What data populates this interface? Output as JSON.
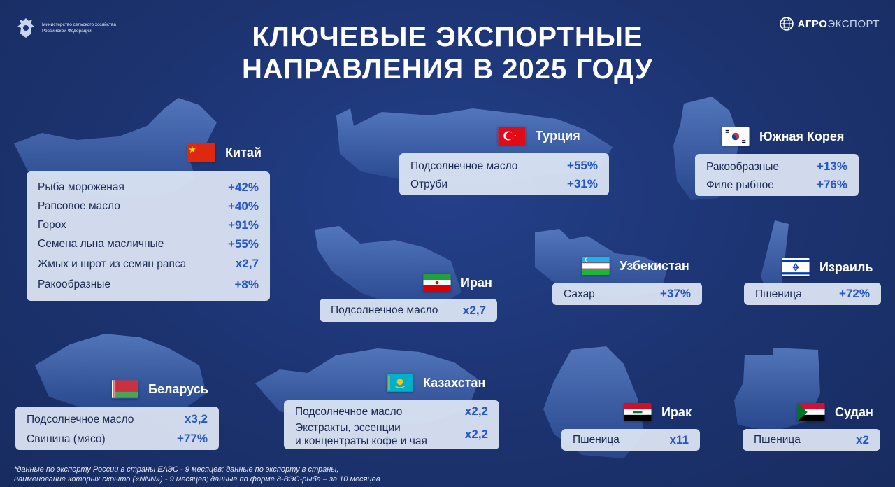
{
  "header": {
    "ministry": "Министерство сельского хозяйства Российской Федерации",
    "ministry_line1": "Министерство сельского хозяйства",
    "ministry_line2": "Российской Федерации",
    "brand_bold": "АГРО",
    "brand_thin": "ЭКСПОРТ",
    "title_line1": "КЛЮЧЕВЫЕ ЭКСПОРТНЫЕ",
    "title_line2": "НАПРАВЛЕНИЯ В 2025 ГОДУ"
  },
  "countries": {
    "china": {
      "name": "Китай",
      "rows": [
        {
          "label": "Рыба мороженая",
          "value": "+42%"
        },
        {
          "label": "Рапсовое масло",
          "value": "+40%"
        },
        {
          "label": "Горох",
          "value": "+91%"
        },
        {
          "label": "Семена льна масличные",
          "value": "+55%"
        },
        {
          "label": "Жмых и шрот из семян рапса",
          "value": "х2,7"
        },
        {
          "label": "Ракообразные",
          "value": "+8%"
        }
      ]
    },
    "turkey": {
      "name": "Турция",
      "rows": [
        {
          "label": "Подсолнечное масло",
          "value": "+55%"
        },
        {
          "label": "Отруби",
          "value": "+31%"
        }
      ]
    },
    "korea": {
      "name": "Южная Корея",
      "rows": [
        {
          "label": "Ракообразные",
          "value": "+13%"
        },
        {
          "label": "Филе рыбное",
          "value": "+76%"
        }
      ]
    },
    "iran": {
      "name": "Иран",
      "rows": [
        {
          "label": "Подсолнечное масло",
          "value": "х2,7"
        }
      ]
    },
    "uzbekistan": {
      "name": "Узбекистан",
      "rows": [
        {
          "label": "Сахар",
          "value": "+37%"
        }
      ]
    },
    "israel": {
      "name": "Израиль",
      "rows": [
        {
          "label": "Пшеница",
          "value": "+72%"
        }
      ]
    },
    "belarus": {
      "name": "Беларусь",
      "rows": [
        {
          "label": "Подсолнечное масло",
          "value": "х3,2"
        },
        {
          "label": "Свинина (мясо)",
          "value": "+77%"
        }
      ]
    },
    "kazakhstan": {
      "name": "Казахстан",
      "rows": [
        {
          "label": "Подсолнечное масло",
          "value": "х2,2"
        },
        {
          "label": "Экстракты, эссенции и концентраты кофе и чая",
          "label_line1": "Экстракты, эссенции",
          "label_line2": "и концентраты кофе и чая",
          "value": "х2,2"
        }
      ]
    },
    "iraq": {
      "name": "Ирак",
      "rows": [
        {
          "label": "Пшеница",
          "value": "х11"
        }
      ]
    },
    "sudan": {
      "name": "Судан",
      "rows": [
        {
          "label": "Пшеница",
          "value": "х2"
        }
      ]
    }
  },
  "footnote": {
    "line1": "*данные по экспорту России в страны ЕАЭС - 9 месяцев; данные по экспорту в страны,",
    "line2": "наименование которых скрыто («NNN») - 9 месяцев; данные по форме 8-ВЭС-рыба – за 10 месяцев"
  },
  "colors": {
    "background": "#1e3470",
    "card": "#e0e8f6",
    "value": "#2556c9",
    "map_fill": "#3d64b0"
  }
}
